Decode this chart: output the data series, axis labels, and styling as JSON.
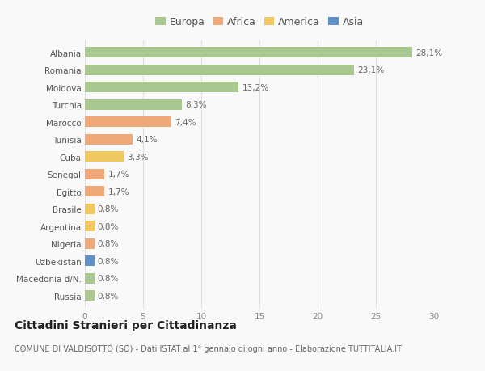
{
  "countries": [
    "Albania",
    "Romania",
    "Moldova",
    "Turchia",
    "Marocco",
    "Tunisia",
    "Cuba",
    "Senegal",
    "Egitto",
    "Brasile",
    "Argentina",
    "Nigeria",
    "Uzbekistan",
    "Macedonia d/N.",
    "Russia"
  ],
  "values": [
    28.1,
    23.1,
    13.2,
    8.3,
    7.4,
    4.1,
    3.3,
    1.7,
    1.7,
    0.8,
    0.8,
    0.8,
    0.8,
    0.8,
    0.8
  ],
  "labels": [
    "28,1%",
    "23,1%",
    "13,2%",
    "8,3%",
    "7,4%",
    "4,1%",
    "3,3%",
    "1,7%",
    "1,7%",
    "0,8%",
    "0,8%",
    "0,8%",
    "0,8%",
    "0,8%",
    "0,8%"
  ],
  "continent": [
    "Europa",
    "Europa",
    "Europa",
    "Europa",
    "Africa",
    "Africa",
    "America",
    "Africa",
    "Africa",
    "America",
    "America",
    "Africa",
    "Asia",
    "Europa",
    "Europa"
  ],
  "colors": {
    "Europa": "#a8c890",
    "Africa": "#f0a878",
    "America": "#f0c860",
    "Asia": "#6090c8"
  },
  "legend_order": [
    "Europa",
    "Africa",
    "America",
    "Asia"
  ],
  "title": "Cittadini Stranieri per Cittadinanza",
  "subtitle": "COMUNE DI VALDISOTTO (SO) - Dati ISTAT al 1° gennaio di ogni anno - Elaborazione TUTTITALIA.IT",
  "xlim": [
    0,
    30
  ],
  "xticks": [
    0,
    5,
    10,
    15,
    20,
    25,
    30
  ],
  "background_color": "#f9f9f9",
  "grid_color": "#e0e0e0",
  "bar_height": 0.6,
  "title_fontsize": 10,
  "subtitle_fontsize": 7,
  "label_fontsize": 7.5,
  "tick_fontsize": 7.5,
  "legend_fontsize": 9
}
